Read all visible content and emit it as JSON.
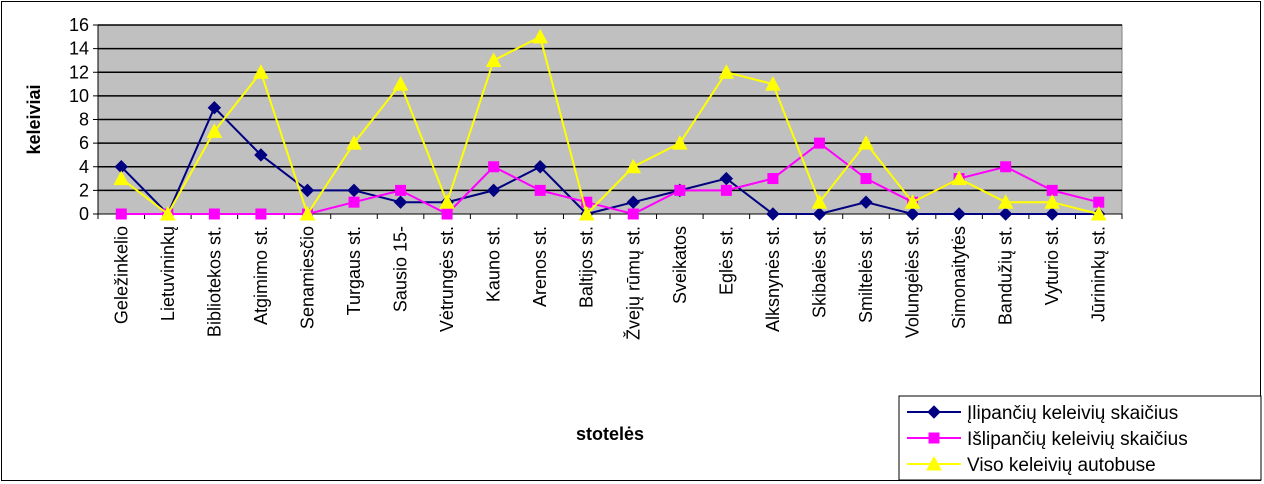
{
  "chart_data": {
    "type": "line",
    "title": "",
    "xlabel": "stotelės",
    "ylabel": "keleiviai",
    "ylim": [
      0,
      16
    ],
    "yticks": [
      0,
      2,
      4,
      6,
      8,
      10,
      12,
      14,
      16
    ],
    "grid": true,
    "legend_position": "bottom-right",
    "plot_background": "#c0c0c0",
    "categories": [
      "Geležinkelio",
      "Lietuvininkų",
      "Bibliotekos st.",
      "Atgimimo st.",
      "Senamiesčio",
      "Turgaus st.",
      "Sausio 15-",
      "Vėtrungės st.",
      "Kauno st.",
      "Arenos st.",
      "Baltijos st.",
      "Žvejų rūmų st.",
      "Sveikatos",
      "Eglės st.",
      "Alksnynės st.",
      "Skibalės st.",
      "Smiltelės st.",
      "Volungėlės st.",
      "Simonaitytės",
      "Bandužių st.",
      "Vyturio st.",
      "Jūrininkų st."
    ],
    "series": [
      {
        "name": "Įlipančių keleivių skaičius",
        "color": "#000080",
        "marker": "diamond",
        "values": [
          4,
          0,
          9,
          5,
          2,
          2,
          1,
          1,
          2,
          4,
          0,
          1,
          2,
          3,
          0,
          0,
          1,
          0,
          0,
          0,
          0,
          0
        ]
      },
      {
        "name": "Išlipančių keleivių skaičius",
        "color": "#ff00ff",
        "marker": "square",
        "values": [
          0,
          0,
          0,
          0,
          0,
          1,
          2,
          0,
          4,
          2,
          1,
          0,
          2,
          2,
          3,
          6,
          3,
          1,
          3,
          4,
          2,
          1
        ]
      },
      {
        "name": "Viso keleivių autobuse",
        "color": "#ffff00",
        "marker": "triangle",
        "values": [
          3,
          0,
          7,
          12,
          0,
          6,
          11,
          1,
          13,
          15,
          0,
          4,
          6,
          12,
          11,
          1,
          6,
          1,
          3,
          1,
          1,
          0
        ]
      }
    ]
  }
}
